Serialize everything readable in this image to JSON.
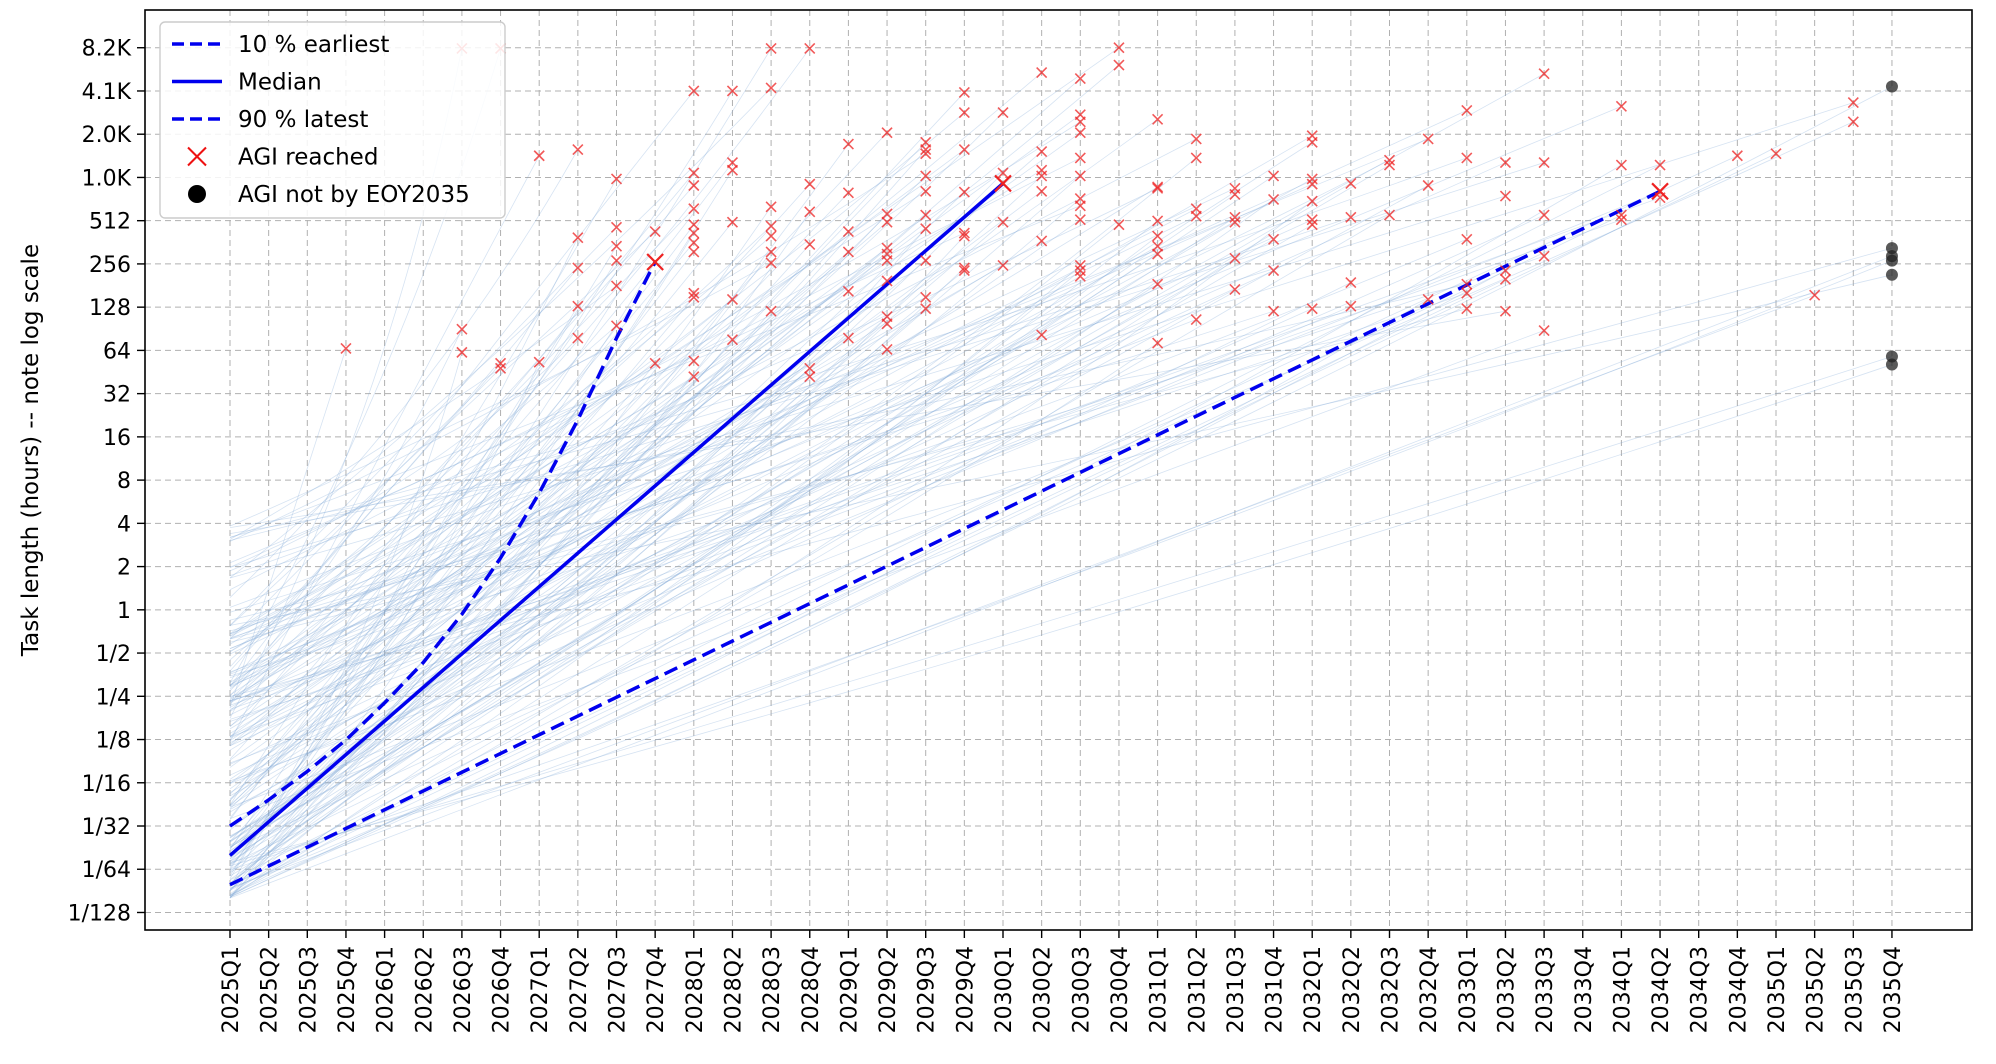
{
  "chart_data": {
    "type": "line",
    "title": "",
    "xlabel": "",
    "ylabel": "Task length (hours) -- note log scale",
    "y_scale": "log2",
    "grid": true,
    "legend_placement": "top-left",
    "x_categories": [
      "2025Q1",
      "2025Q2",
      "2025Q3",
      "2025Q4",
      "2026Q1",
      "2026Q2",
      "2026Q3",
      "2026Q4",
      "2027Q1",
      "2027Q2",
      "2027Q3",
      "2027Q4",
      "2028Q1",
      "2028Q2",
      "2028Q3",
      "2028Q4",
      "2029Q1",
      "2029Q2",
      "2029Q3",
      "2029Q4",
      "2030Q1",
      "2030Q2",
      "2030Q3",
      "2030Q4",
      "2031Q1",
      "2031Q2",
      "2031Q3",
      "2031Q4",
      "2032Q1",
      "2032Q2",
      "2032Q3",
      "2032Q4",
      "2033Q1",
      "2033Q2",
      "2033Q3",
      "2033Q4",
      "2034Q1",
      "2034Q2",
      "2034Q3",
      "2034Q4",
      "2035Q1",
      "2035Q2",
      "2035Q3",
      "2035Q4"
    ],
    "y_ticks": [
      {
        "label": "1/128",
        "value": 0.0078125
      },
      {
        "label": "1/64",
        "value": 0.015625
      },
      {
        "label": "1/32",
        "value": 0.03125
      },
      {
        "label": "1/16",
        "value": 0.0625
      },
      {
        "label": "1/8",
        "value": 0.125
      },
      {
        "label": "1/4",
        "value": 0.25
      },
      {
        "label": "1/2",
        "value": 0.5
      },
      {
        "label": "1",
        "value": 1
      },
      {
        "label": "2",
        "value": 2
      },
      {
        "label": "4",
        "value": 4
      },
      {
        "label": "8",
        "value": 8
      },
      {
        "label": "16",
        "value": 16
      },
      {
        "label": "32",
        "value": 32
      },
      {
        "label": "64",
        "value": 64
      },
      {
        "label": "128",
        "value": 128
      },
      {
        "label": "256",
        "value": 256
      },
      {
        "label": "512",
        "value": 512
      },
      {
        "label": "1.0K",
        "value": 1024
      },
      {
        "label": "2.0K",
        "value": 2048
      },
      {
        "label": "4.1K",
        "value": 4096
      },
      {
        "label": "8.2K",
        "value": 8192
      }
    ],
    "ylim": [
      0.0059,
      15000
    ],
    "legend": [
      {
        "label": "10 % earliest",
        "style": "dashed",
        "color": "#0000ee"
      },
      {
        "label": "Median",
        "style": "solid",
        "color": "#0000ee"
      },
      {
        "label": "90 % latest",
        "style": "dashed",
        "color": "#0000ee"
      },
      {
        "label": "AGI reached",
        "style": "x-marker",
        "color": "#ee1111"
      },
      {
        "label": "AGI not by EOY2035",
        "style": "dot",
        "color": "#000000"
      }
    ],
    "colors": {
      "percentile_lines": "#0000ee",
      "trajectories": "#7fa9d6",
      "agi_reached": "#ee2222",
      "agi_not_reached": "#222222",
      "grid": "#b0b0b0"
    },
    "series": [
      {
        "name": "10 % earliest",
        "style": "dashed",
        "points": [
          [
            "2025Q1",
            0.0312
          ],
          [
            "2025Q2",
            0.0475
          ],
          [
            "2025Q3",
            0.075
          ],
          [
            "2025Q4",
            0.124
          ],
          [
            "2026Q1",
            0.225
          ],
          [
            "2026Q2",
            0.43
          ],
          [
            "2026Q3",
            0.93
          ],
          [
            "2026Q4",
            2.3
          ],
          [
            "2027Q1",
            6.5
          ],
          [
            "2027Q2",
            21
          ],
          [
            "2027Q3",
            78
          ],
          [
            "2027Q4",
            264
          ]
        ]
      },
      {
        "name": "Median",
        "style": "solid",
        "points": [
          [
            "2025Q1",
            0.0195
          ],
          [
            "2030Q1",
            930
          ]
        ]
      },
      {
        "name": "90 % latest",
        "style": "dashed",
        "points": [
          [
            "2025Q1",
            0.0122
          ],
          [
            "2034Q2",
            820
          ]
        ]
      }
    ],
    "agi_reached_points": [
      [
        "2025Q4",
        66
      ],
      [
        "2026Q3",
        8100
      ],
      [
        "2026Q3",
        90
      ],
      [
        "2026Q3",
        62
      ],
      [
        "2026Q4",
        8100
      ],
      [
        "2026Q4",
        52
      ],
      [
        "2026Q4",
        48
      ],
      [
        "2027Q1",
        1450
      ],
      [
        "2027Q1",
        53
      ],
      [
        "2027Q2",
        1600
      ],
      [
        "2027Q2",
        390
      ],
      [
        "2027Q2",
        240
      ],
      [
        "2027Q2",
        130
      ],
      [
        "2027Q2",
        78
      ],
      [
        "2027Q3",
        1000
      ],
      [
        "2027Q3",
        460
      ],
      [
        "2027Q3",
        340
      ],
      [
        "2027Q3",
        270
      ],
      [
        "2027Q3",
        180
      ],
      [
        "2027Q3",
        95
      ],
      [
        "2027Q4",
        264
      ],
      [
        "2027Q4",
        430
      ],
      [
        "2027Q4",
        52
      ],
      [
        "2028Q1",
        4100
      ],
      [
        "2028Q1",
        1100
      ],
      [
        "2028Q1",
        900
      ],
      [
        "2028Q1",
        620
      ],
      [
        "2028Q1",
        480
      ],
      [
        "2028Q1",
        420
      ],
      [
        "2028Q1",
        360
      ],
      [
        "2028Q1",
        310
      ],
      [
        "2028Q1",
        160
      ],
      [
        "2028Q1",
        150
      ],
      [
        "2028Q1",
        54
      ],
      [
        "2028Q1",
        42
      ],
      [
        "2028Q2",
        4100
      ],
      [
        "2028Q2",
        1300
      ],
      [
        "2028Q2",
        1150
      ],
      [
        "2028Q2",
        500
      ],
      [
        "2028Q2",
        145
      ],
      [
        "2028Q2",
        76
      ],
      [
        "2028Q3",
        8100
      ],
      [
        "2028Q3",
        4300
      ],
      [
        "2028Q3",
        640
      ],
      [
        "2028Q3",
        470
      ],
      [
        "2028Q3",
        400
      ],
      [
        "2028Q3",
        310
      ],
      [
        "2028Q3",
        260
      ],
      [
        "2028Q3",
        120
      ],
      [
        "2028Q4",
        8100
      ],
      [
        "2028Q4",
        920
      ],
      [
        "2028Q4",
        590
      ],
      [
        "2028Q4",
        350
      ],
      [
        "2028Q4",
        48
      ],
      [
        "2028Q4",
        42
      ],
      [
        "2029Q1",
        1750
      ],
      [
        "2029Q1",
        800
      ],
      [
        "2029Q1",
        430
      ],
      [
        "2029Q1",
        310
      ],
      [
        "2029Q1",
        165
      ],
      [
        "2029Q1",
        78
      ],
      [
        "2029Q2",
        2100
      ],
      [
        "2029Q2",
        570
      ],
      [
        "2029Q2",
        500
      ],
      [
        "2029Q2",
        330
      ],
      [
        "2029Q2",
        300
      ],
      [
        "2029Q2",
        270
      ],
      [
        "2029Q2",
        195
      ],
      [
        "2029Q2",
        110
      ],
      [
        "2029Q2",
        98
      ],
      [
        "2029Q2",
        65
      ],
      [
        "2029Q3",
        1800
      ],
      [
        "2029Q3",
        1600
      ],
      [
        "2029Q3",
        1500
      ],
      [
        "2029Q3",
        1050
      ],
      [
        "2029Q3",
        820
      ],
      [
        "2029Q3",
        560
      ],
      [
        "2029Q3",
        450
      ],
      [
        "2029Q3",
        270
      ],
      [
        "2029Q3",
        150
      ],
      [
        "2029Q3",
        125
      ],
      [
        "2029Q4",
        4000
      ],
      [
        "2029Q4",
        2900
      ],
      [
        "2029Q4",
        1600
      ],
      [
        "2029Q4",
        810
      ],
      [
        "2029Q4",
        420
      ],
      [
        "2029Q4",
        400
      ],
      [
        "2029Q4",
        240
      ],
      [
        "2029Q4",
        230
      ],
      [
        "2030Q1",
        2900
      ],
      [
        "2030Q1",
        1100
      ],
      [
        "2030Q1",
        930
      ],
      [
        "2030Q1",
        500
      ],
      [
        "2030Q1",
        250
      ],
      [
        "2030Q2",
        5500
      ],
      [
        "2030Q2",
        1550
      ],
      [
        "2030Q2",
        1150
      ],
      [
        "2030Q2",
        1050
      ],
      [
        "2030Q2",
        820
      ],
      [
        "2030Q2",
        370
      ],
      [
        "2030Q2",
        82
      ],
      [
        "2030Q3",
        5000
      ],
      [
        "2030Q3",
        2800
      ],
      [
        "2030Q3",
        2500
      ],
      [
        "2030Q3",
        2100
      ],
      [
        "2030Q3",
        1400
      ],
      [
        "2030Q3",
        1050
      ],
      [
        "2030Q3",
        730
      ],
      [
        "2030Q3",
        650
      ],
      [
        "2030Q3",
        520
      ],
      [
        "2030Q3",
        250
      ],
      [
        "2030Q3",
        230
      ],
      [
        "2030Q3",
        210
      ],
      [
        "2030Q4",
        8200
      ],
      [
        "2030Q4",
        6200
      ],
      [
        "2030Q4",
        480
      ],
      [
        "2031Q1",
        2600
      ],
      [
        "2031Q1",
        880
      ],
      [
        "2031Q1",
        860
      ],
      [
        "2031Q1",
        510
      ],
      [
        "2031Q1",
        400
      ],
      [
        "2031Q1",
        340
      ],
      [
        "2031Q1",
        300
      ],
      [
        "2031Q1",
        185
      ],
      [
        "2031Q1",
        72
      ],
      [
        "2031Q2",
        1900
      ],
      [
        "2031Q2",
        1400
      ],
      [
        "2031Q2",
        620
      ],
      [
        "2031Q2",
        550
      ],
      [
        "2031Q2",
        105
      ],
      [
        "2031Q3",
        860
      ],
      [
        "2031Q3",
        780
      ],
      [
        "2031Q3",
        540
      ],
      [
        "2031Q3",
        500
      ],
      [
        "2031Q3",
        280
      ],
      [
        "2031Q3",
        170
      ],
      [
        "2031Q4",
        1050
      ],
      [
        "2031Q4",
        720
      ],
      [
        "2031Q4",
        380
      ],
      [
        "2031Q4",
        230
      ],
      [
        "2031Q4",
        120
      ],
      [
        "2032Q1",
        2000
      ],
      [
        "2032Q1",
        1800
      ],
      [
        "2032Q1",
        1000
      ],
      [
        "2032Q1",
        920
      ],
      [
        "2032Q1",
        700
      ],
      [
        "2032Q1",
        520
      ],
      [
        "2032Q1",
        480
      ],
      [
        "2032Q1",
        125
      ],
      [
        "2032Q2",
        930
      ],
      [
        "2032Q2",
        540
      ],
      [
        "2032Q2",
        190
      ],
      [
        "2032Q2",
        130
      ],
      [
        "2032Q3",
        1350
      ],
      [
        "2032Q3",
        1250
      ],
      [
        "2032Q3",
        560
      ],
      [
        "2032Q4",
        1900
      ],
      [
        "2032Q4",
        900
      ],
      [
        "2032Q4",
        145
      ],
      [
        "2033Q1",
        3000
      ],
      [
        "2033Q1",
        1400
      ],
      [
        "2033Q1",
        380
      ],
      [
        "2033Q1",
        185
      ],
      [
        "2033Q1",
        160
      ],
      [
        "2033Q1",
        125
      ],
      [
        "2033Q2",
        1300
      ],
      [
        "2033Q2",
        760
      ],
      [
        "2033Q2",
        230
      ],
      [
        "2033Q2",
        200
      ],
      [
        "2033Q2",
        120
      ],
      [
        "2033Q3",
        5400
      ],
      [
        "2033Q3",
        1300
      ],
      [
        "2033Q3",
        560
      ],
      [
        "2033Q3",
        290
      ],
      [
        "2033Q3",
        88
      ],
      [
        "2034Q1",
        3200
      ],
      [
        "2034Q1",
        1250
      ],
      [
        "2034Q1",
        560
      ],
      [
        "2034Q1",
        520
      ],
      [
        "2034Q2",
        1250
      ],
      [
        "2034Q2",
        820
      ],
      [
        "2034Q2",
        740
      ],
      [
        "2034Q4",
        1450
      ],
      [
        "2035Q1",
        1500
      ],
      [
        "2035Q2",
        155
      ],
      [
        "2035Q3",
        3400
      ],
      [
        "2035Q3",
        2500
      ]
    ],
    "agi_not_reached_points": [
      [
        "2035Q4",
        4400
      ],
      [
        "2035Q4",
        330
      ],
      [
        "2035Q4",
        290
      ],
      [
        "2035Q4",
        270
      ],
      [
        "2035Q4",
        215
      ],
      [
        "2035Q4",
        58
      ],
      [
        "2035Q4",
        51
      ]
    ]
  }
}
